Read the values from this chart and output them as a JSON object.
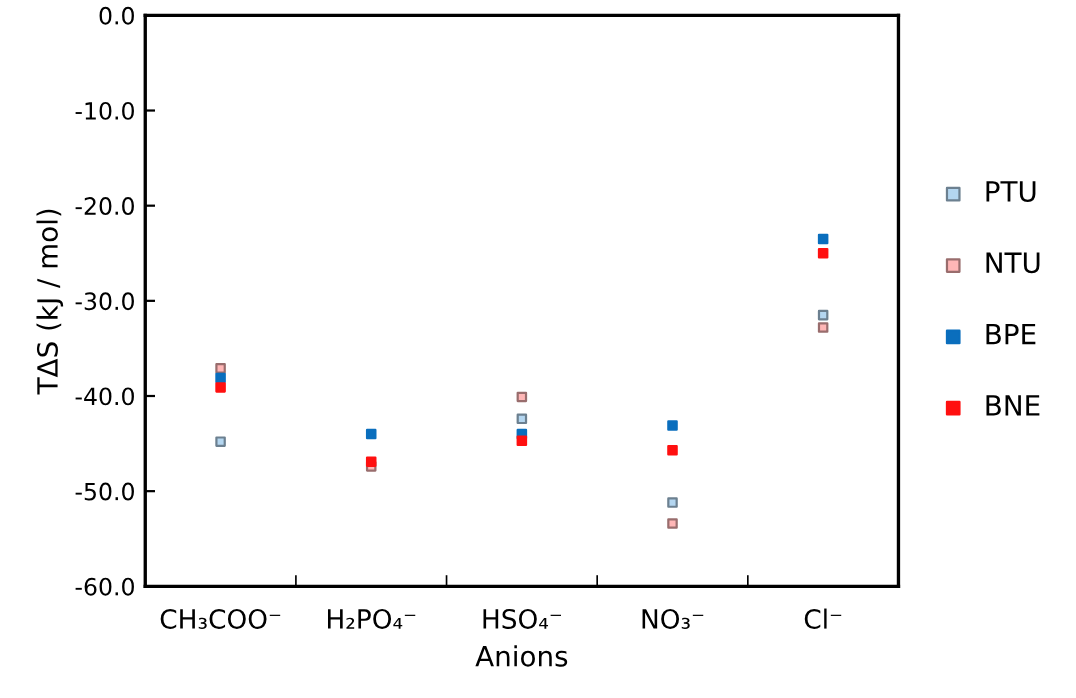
{
  "chart_data": {
    "type": "scatter",
    "xlabel": "Anions",
    "ylabel": "TΔS (kJ / mol)",
    "categories": [
      "CH₃COO⁻",
      "H₂PO₄⁻",
      "HSO₄⁻",
      "NO₃⁻",
      "Cl⁻"
    ],
    "series": [
      {
        "name": "PTU",
        "color": "#b4d6f0",
        "values": [
          -44.8,
          null,
          -42.4,
          -51.2,
          -31.5
        ]
      },
      {
        "name": "NTU",
        "color": "#ffb6b6",
        "values": [
          -37.1,
          -47.4,
          -40.1,
          -53.4,
          -32.8
        ]
      },
      {
        "name": "BPE",
        "color": "#0a6ebd",
        "values": [
          -38.1,
          -44.0,
          -44.0,
          -43.1,
          -23.5
        ]
      },
      {
        "name": "BNE",
        "color": "#ff1010",
        "values": [
          -39.1,
          -46.9,
          -44.7,
          -45.7,
          -25.0
        ]
      }
    ],
    "ylim": [
      -60,
      0
    ],
    "yticks": [
      {
        "value": -60,
        "label": "-60.0"
      },
      {
        "value": -50,
        "label": "-50.0"
      },
      {
        "value": -40,
        "label": "-40.0"
      },
      {
        "value": -30,
        "label": "-30.0"
      },
      {
        "value": -20,
        "label": "-20.0"
      },
      {
        "value": -10,
        "label": "-10.0"
      },
      {
        "value": 0,
        "label": "0.0"
      }
    ],
    "marker": "square",
    "grid": false,
    "legend": "right"
  }
}
